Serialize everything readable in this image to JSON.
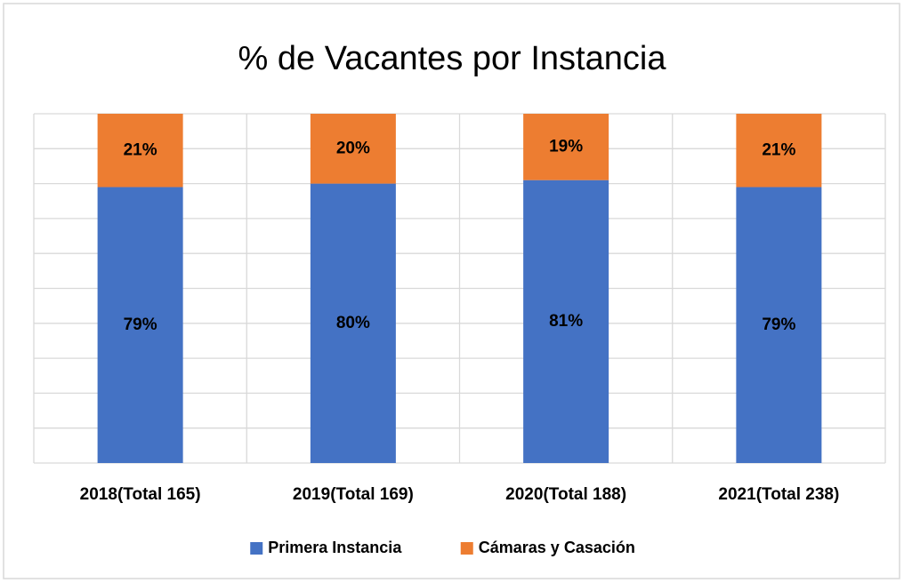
{
  "chart_data": {
    "type": "stacked_bar",
    "title": "% de Vacantes por Instancia",
    "categories": [
      "2018(Total 165)",
      "2019(Total 169)",
      "2020(Total 188)",
      "2021(Total 238)"
    ],
    "series": [
      {
        "name": "Primera Instancia",
        "color": "#4472c4",
        "values": [
          79,
          80,
          81,
          79
        ],
        "value_labels": [
          "79%",
          "80%",
          "81%",
          "79%"
        ]
      },
      {
        "name": "Cámaras y Casación",
        "color": "#ed7d31",
        "values": [
          21,
          20,
          19,
          21
        ],
        "value_labels": [
          "21%",
          "20%",
          "19%",
          "21%"
        ]
      }
    ],
    "ylim": [
      0,
      100
    ],
    "yticks": [
      0,
      10,
      20,
      30,
      40,
      50,
      60,
      70,
      80,
      90,
      100
    ],
    "ytick_labels": false,
    "grid": true,
    "legend": "bottom"
  }
}
